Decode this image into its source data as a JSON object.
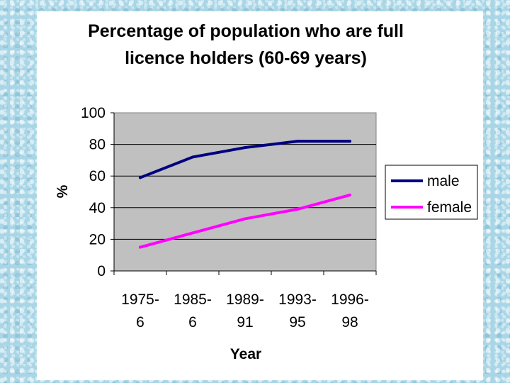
{
  "chart_data": {
    "type": "line",
    "title_lines": [
      "Percentage of population who are full",
      "licence holders (60-69 years)"
    ],
    "xlabel": "Year",
    "ylabel": "%",
    "categories": [
      [
        "1975-",
        "6"
      ],
      [
        "1985-",
        "6"
      ],
      [
        "1989-",
        "91"
      ],
      [
        "1993-",
        "95"
      ],
      [
        "1996-",
        "98"
      ]
    ],
    "ylim": [
      0,
      100
    ],
    "yticks": [
      0,
      20,
      40,
      60,
      80,
      100
    ],
    "grid": true,
    "legend_position": "right",
    "plot_background": "#c0c0c0",
    "series": [
      {
        "name": "male",
        "color": "#000080",
        "values": [
          59,
          72,
          78,
          82,
          82
        ]
      },
      {
        "name": "female",
        "color": "#ff00ff",
        "values": [
          15,
          24,
          33,
          39,
          48
        ]
      }
    ]
  }
}
